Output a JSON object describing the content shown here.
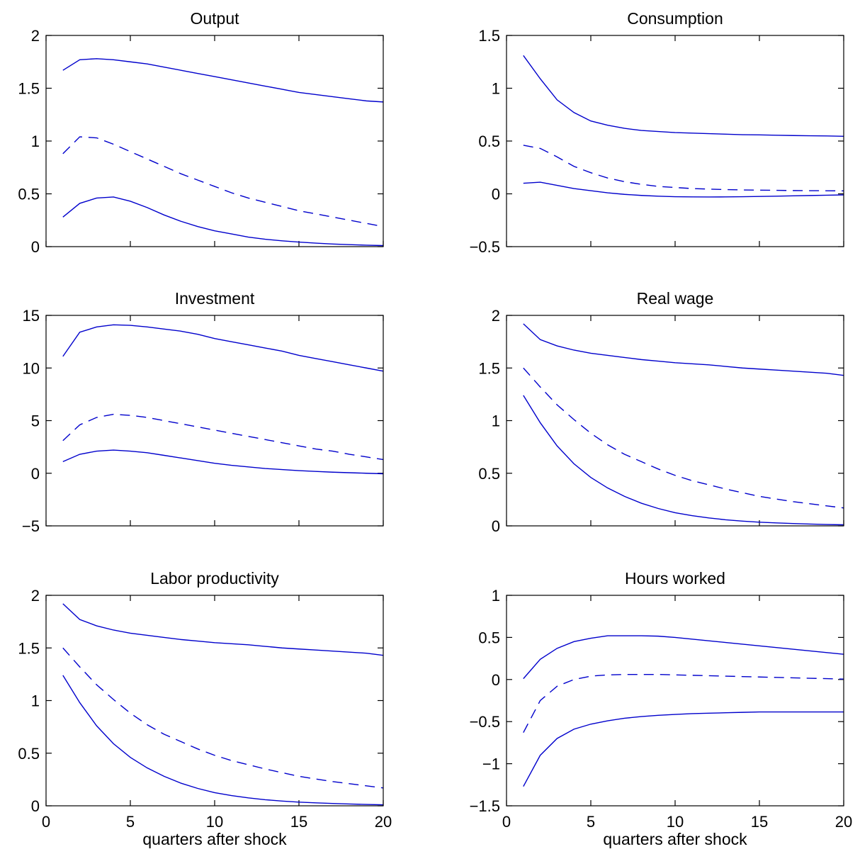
{
  "chart_data": [
    {
      "type": "line",
      "title": "Output",
      "xlabel": "",
      "ylabel": "",
      "xlim": [
        0,
        20
      ],
      "ylim": [
        0,
        2
      ],
      "yticks": [
        0,
        0.5,
        1,
        1.5,
        2
      ],
      "ytick_labels": [
        "0",
        "0.5",
        "1",
        "1.5",
        "2"
      ],
      "xticks": [
        0,
        5,
        10,
        15,
        20
      ],
      "xtick_labels": [],
      "x": [
        1,
        2,
        3,
        4,
        5,
        6,
        7,
        8,
        9,
        10,
        11,
        12,
        13,
        14,
        15,
        16,
        17,
        18,
        19,
        20
      ],
      "series": [
        {
          "style": "solid",
          "values": [
            1.67,
            1.77,
            1.78,
            1.77,
            1.75,
            1.73,
            1.7,
            1.67,
            1.64,
            1.61,
            1.58,
            1.55,
            1.52,
            1.49,
            1.46,
            1.44,
            1.42,
            1.4,
            1.38,
            1.37
          ]
        },
        {
          "style": "dashed",
          "values": [
            0.88,
            1.04,
            1.03,
            0.97,
            0.9,
            0.83,
            0.76,
            0.69,
            0.63,
            0.57,
            0.51,
            0.46,
            0.42,
            0.38,
            0.34,
            0.31,
            0.28,
            0.25,
            0.22,
            0.19
          ]
        },
        {
          "style": "solid",
          "values": [
            0.28,
            0.41,
            0.46,
            0.47,
            0.43,
            0.37,
            0.3,
            0.24,
            0.19,
            0.15,
            0.12,
            0.09,
            0.07,
            0.055,
            0.043,
            0.033,
            0.025,
            0.019,
            0.014,
            0.01
          ]
        }
      ]
    },
    {
      "type": "line",
      "title": "Consumption",
      "xlabel": "",
      "ylabel": "",
      "xlim": [
        0,
        20
      ],
      "ylim": [
        -0.5,
        1.5
      ],
      "yticks": [
        -0.5,
        0,
        0.5,
        1,
        1.5
      ],
      "ytick_labels": [
        "−0.5",
        "0",
        "0.5",
        "1",
        "1.5"
      ],
      "xticks": [
        0,
        5,
        10,
        15,
        20
      ],
      "xtick_labels": [],
      "x": [
        1,
        2,
        3,
        4,
        5,
        6,
        7,
        8,
        9,
        10,
        11,
        12,
        13,
        14,
        15,
        16,
        17,
        18,
        19,
        20
      ],
      "series": [
        {
          "style": "solid",
          "values": [
            1.31,
            1.09,
            0.89,
            0.77,
            0.69,
            0.65,
            0.62,
            0.6,
            0.59,
            0.58,
            0.575,
            0.57,
            0.565,
            0.56,
            0.558,
            0.555,
            0.552,
            0.55,
            0.548,
            0.545
          ]
        },
        {
          "style": "dashed",
          "values": [
            0.46,
            0.43,
            0.35,
            0.26,
            0.2,
            0.15,
            0.115,
            0.09,
            0.07,
            0.06,
            0.05,
            0.045,
            0.04,
            0.037,
            0.035,
            0.033,
            0.031,
            0.03,
            0.029,
            0.028
          ]
        },
        {
          "style": "solid",
          "values": [
            0.1,
            0.11,
            0.08,
            0.05,
            0.03,
            0.01,
            -0.005,
            -0.015,
            -0.022,
            -0.027,
            -0.029,
            -0.03,
            -0.029,
            -0.027,
            -0.025,
            -0.022,
            -0.019,
            -0.016,
            -0.013,
            -0.01
          ]
        }
      ]
    },
    {
      "type": "line",
      "title": "Investment",
      "xlabel": "",
      "ylabel": "",
      "xlim": [
        0,
        20
      ],
      "ylim": [
        -5,
        15
      ],
      "yticks": [
        -5,
        0,
        5,
        10,
        15
      ],
      "ytick_labels": [
        "−5",
        "0",
        "5",
        "10",
        "15"
      ],
      "xticks": [
        0,
        5,
        10,
        15,
        20
      ],
      "xtick_labels": [],
      "x": [
        1,
        2,
        3,
        4,
        5,
        6,
        7,
        8,
        9,
        10,
        11,
        12,
        13,
        14,
        15,
        16,
        17,
        18,
        19,
        20
      ],
      "series": [
        {
          "style": "solid",
          "values": [
            11.1,
            13.4,
            13.9,
            14.1,
            14.05,
            13.9,
            13.7,
            13.5,
            13.2,
            12.8,
            12.5,
            12.2,
            11.9,
            11.6,
            11.2,
            10.9,
            10.6,
            10.3,
            10.0,
            9.7
          ]
        },
        {
          "style": "dashed",
          "values": [
            3.1,
            4.6,
            5.3,
            5.6,
            5.5,
            5.3,
            5.0,
            4.7,
            4.4,
            4.1,
            3.8,
            3.5,
            3.2,
            2.9,
            2.6,
            2.3,
            2.1,
            1.8,
            1.55,
            1.3
          ]
        },
        {
          "style": "solid",
          "values": [
            1.1,
            1.8,
            2.1,
            2.2,
            2.1,
            1.95,
            1.7,
            1.45,
            1.2,
            0.95,
            0.75,
            0.6,
            0.45,
            0.35,
            0.25,
            0.17,
            0.1,
            0.05,
            0.0,
            -0.05
          ]
        }
      ]
    },
    {
      "type": "line",
      "title": "Real wage",
      "xlabel": "",
      "ylabel": "",
      "xlim": [
        0,
        20
      ],
      "ylim": [
        0,
        2
      ],
      "yticks": [
        0,
        0.5,
        1,
        1.5,
        2
      ],
      "ytick_labels": [
        "0",
        "0.5",
        "1",
        "1.5",
        "2"
      ],
      "xticks": [
        0,
        5,
        10,
        15,
        20
      ],
      "xtick_labels": [],
      "x": [
        1,
        2,
        3,
        4,
        5,
        6,
        7,
        8,
        9,
        10,
        11,
        12,
        13,
        14,
        15,
        16,
        17,
        18,
        19,
        20
      ],
      "series": [
        {
          "style": "solid",
          "values": [
            1.92,
            1.77,
            1.71,
            1.67,
            1.64,
            1.62,
            1.6,
            1.58,
            1.565,
            1.55,
            1.54,
            1.53,
            1.515,
            1.5,
            1.49,
            1.48,
            1.47,
            1.46,
            1.45,
            1.43
          ]
        },
        {
          "style": "dashed",
          "values": [
            1.5,
            1.32,
            1.15,
            1.01,
            0.88,
            0.77,
            0.68,
            0.61,
            0.54,
            0.48,
            0.43,
            0.39,
            0.35,
            0.315,
            0.28,
            0.255,
            0.23,
            0.21,
            0.19,
            0.17
          ]
        },
        {
          "style": "solid",
          "values": [
            1.24,
            0.98,
            0.76,
            0.59,
            0.46,
            0.36,
            0.28,
            0.215,
            0.165,
            0.125,
            0.097,
            0.075,
            0.058,
            0.045,
            0.035,
            0.028,
            0.022,
            0.017,
            0.013,
            0.01
          ]
        }
      ]
    },
    {
      "type": "line",
      "title": "Labor productivity",
      "xlabel": "quarters after shock",
      "ylabel": "",
      "xlim": [
        0,
        20
      ],
      "ylim": [
        0,
        2
      ],
      "yticks": [
        0,
        0.5,
        1,
        1.5,
        2
      ],
      "ytick_labels": [
        "0",
        "0.5",
        "1",
        "1.5",
        "2"
      ],
      "xticks": [
        0,
        5,
        10,
        15,
        20
      ],
      "xtick_labels": [
        "0",
        "5",
        "10",
        "15",
        "20"
      ],
      "x": [
        1,
        2,
        3,
        4,
        5,
        6,
        7,
        8,
        9,
        10,
        11,
        12,
        13,
        14,
        15,
        16,
        17,
        18,
        19,
        20
      ],
      "series": [
        {
          "style": "solid",
          "values": [
            1.92,
            1.77,
            1.71,
            1.67,
            1.64,
            1.62,
            1.6,
            1.58,
            1.565,
            1.55,
            1.54,
            1.53,
            1.515,
            1.5,
            1.49,
            1.48,
            1.47,
            1.46,
            1.45,
            1.43
          ]
        },
        {
          "style": "dashed",
          "values": [
            1.5,
            1.32,
            1.15,
            1.01,
            0.88,
            0.77,
            0.68,
            0.61,
            0.54,
            0.48,
            0.43,
            0.39,
            0.35,
            0.315,
            0.28,
            0.255,
            0.23,
            0.21,
            0.19,
            0.17
          ]
        },
        {
          "style": "solid",
          "values": [
            1.24,
            0.98,
            0.76,
            0.59,
            0.46,
            0.36,
            0.28,
            0.215,
            0.165,
            0.125,
            0.097,
            0.075,
            0.058,
            0.045,
            0.035,
            0.028,
            0.022,
            0.017,
            0.013,
            0.01
          ]
        }
      ]
    },
    {
      "type": "line",
      "title": "Hours worked",
      "xlabel": "quarters after shock",
      "ylabel": "",
      "xlim": [
        0,
        20
      ],
      "ylim": [
        -1.5,
        1
      ],
      "yticks": [
        -1.5,
        -1,
        -0.5,
        0,
        0.5,
        1
      ],
      "ytick_labels": [
        "−1.5",
        "−1",
        "−0.5",
        "0",
        "0.5",
        "1"
      ],
      "xticks": [
        0,
        5,
        10,
        15,
        20
      ],
      "xtick_labels": [
        "0",
        "5",
        "10",
        "15",
        "20"
      ],
      "x": [
        1,
        2,
        3,
        4,
        5,
        6,
        7,
        8,
        9,
        10,
        11,
        12,
        13,
        14,
        15,
        16,
        17,
        18,
        19,
        20
      ],
      "series": [
        {
          "style": "solid",
          "values": [
            0.01,
            0.24,
            0.37,
            0.45,
            0.49,
            0.52,
            0.52,
            0.52,
            0.515,
            0.5,
            0.48,
            0.46,
            0.44,
            0.42,
            0.4,
            0.38,
            0.36,
            0.34,
            0.32,
            0.3
          ]
        },
        {
          "style": "dashed",
          "values": [
            -0.63,
            -0.25,
            -0.08,
            0.0,
            0.04,
            0.055,
            0.06,
            0.06,
            0.06,
            0.055,
            0.05,
            0.045,
            0.04,
            0.035,
            0.03,
            0.025,
            0.02,
            0.015,
            0.01,
            0.005
          ]
        },
        {
          "style": "solid",
          "values": [
            -1.27,
            -0.9,
            -0.7,
            -0.59,
            -0.53,
            -0.49,
            -0.46,
            -0.44,
            -0.425,
            -0.415,
            -0.405,
            -0.4,
            -0.395,
            -0.39,
            -0.385,
            -0.385,
            -0.385,
            -0.385,
            -0.385,
            -0.385
          ]
        }
      ]
    }
  ]
}
